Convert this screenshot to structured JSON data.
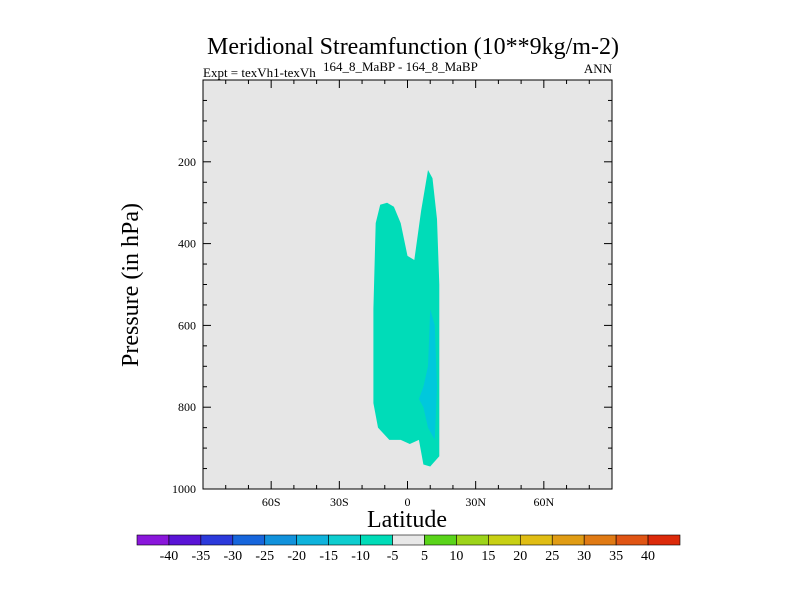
{
  "chart_data": {
    "type": "contour",
    "title": "Meridional Streamfunction (10**9kg/m-2)",
    "subtitle_left": "Expt = texVh1-texVh",
    "subtitle_sup": "164_8_MaBP - 164_8_MaBP",
    "subtitle_right": "ANN",
    "xlabel": "Latitude",
    "ylabel": "Pressure (in hPa)",
    "xlim": [
      -90,
      90
    ],
    "ylim": [
      1000,
      0
    ],
    "x_ticks": [
      {
        "value": -60,
        "label": "60S"
      },
      {
        "value": -30,
        "label": "30S"
      },
      {
        "value": 0,
        "label": "0"
      },
      {
        "value": 30,
        "label": "30N"
      },
      {
        "value": 60,
        "label": "60N"
      }
    ],
    "y_ticks": [
      {
        "value": 200,
        "label": "200"
      },
      {
        "value": 400,
        "label": "400"
      },
      {
        "value": 600,
        "label": "600"
      },
      {
        "value": 800,
        "label": "800"
      },
      {
        "value": 1000,
        "label": "1000"
      }
    ],
    "background_color": "#e6e6e6",
    "contour_regions": [
      {
        "level": "-10 to -5",
        "color": "#00dcb8",
        "points": [
          [
            -14,
            350
          ],
          [
            -12,
            305
          ],
          [
            -9,
            300
          ],
          [
            -6,
            310
          ],
          [
            -3,
            350
          ],
          [
            0,
            430
          ],
          [
            3,
            440
          ],
          [
            6,
            320
          ],
          [
            9,
            220
          ],
          [
            11,
            240
          ],
          [
            13,
            340
          ],
          [
            14,
            500
          ],
          [
            14,
            920
          ],
          [
            10,
            945
          ],
          [
            7,
            940
          ],
          [
            5,
            880
          ],
          [
            1,
            890
          ],
          [
            -3,
            880
          ],
          [
            -8,
            880
          ],
          [
            -13,
            850
          ],
          [
            -15,
            790
          ],
          [
            -15,
            560
          ]
        ]
      },
      {
        "level": "-15 to -10",
        "color": "#00c8dc",
        "points": [
          [
            10,
            560
          ],
          [
            12,
            600
          ],
          [
            13,
            750
          ],
          [
            12,
            880
          ],
          [
            9,
            850
          ],
          [
            7,
            800
          ],
          [
            5,
            780
          ],
          [
            7,
            750
          ],
          [
            9,
            700
          ]
        ]
      }
    ],
    "colorbar": {
      "labels": [
        "-40",
        "-35",
        "-30",
        "-25",
        "-20",
        "-15",
        "-10",
        "-5",
        "5",
        "10",
        "15",
        "20",
        "25",
        "30",
        "35",
        "40"
      ],
      "colors": [
        "#8a17db",
        "#5a14d6",
        "#2c3adb",
        "#1766dc",
        "#1192dc",
        "#0fb3dc",
        "#0fcdcf",
        "#00dcb8",
        "#e8e8e8",
        "#5ad41a",
        "#9dd41a",
        "#c8d014",
        "#e0bd14",
        "#e09c14",
        "#e07a14",
        "#e05514",
        "#dc2a0a"
      ]
    }
  }
}
